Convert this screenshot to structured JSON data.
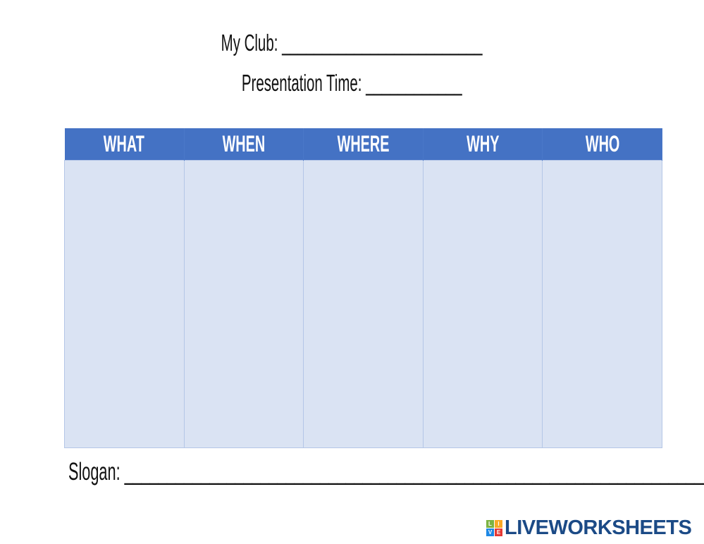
{
  "header": {
    "club_label": "My Club: _________________________",
    "presentation_label": "Presentation Time: ____________"
  },
  "table": {
    "columns": [
      "WHAT",
      "WHEN",
      "WHERE",
      "WHY",
      "WHO"
    ],
    "header_color": "#4472c4",
    "body_color": "#dae3f3"
  },
  "slogan_label": "Slogan: ________________________________________________________________________",
  "logo": {
    "text": "LIVEWORKSHEETS",
    "badge_letters": [
      "L",
      "I",
      "V",
      "E"
    ]
  }
}
